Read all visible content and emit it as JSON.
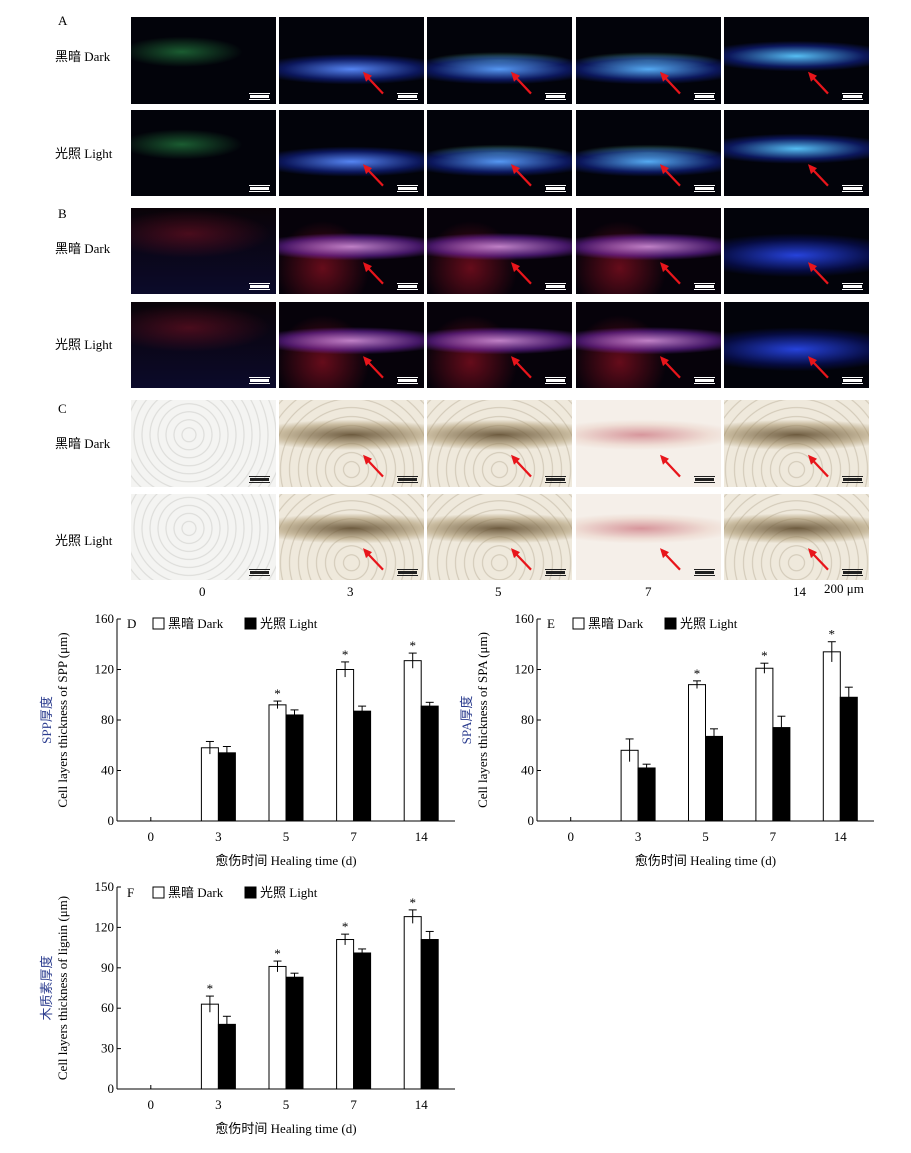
{
  "micrograph_panels": [
    {
      "letter": "A",
      "theme": "blue-green",
      "rows": [
        {
          "label": "黑暗 Dark"
        },
        {
          "label": "光照 Light"
        }
      ]
    },
    {
      "letter": "B",
      "theme": "red-blue",
      "rows": [
        {
          "label": "黑暗 Dark"
        },
        {
          "label": "光照 Light"
        }
      ]
    },
    {
      "letter": "C",
      "theme": "brightfield",
      "rows": [
        {
          "label": "黑暗 Dark"
        },
        {
          "label": "光照 Light"
        }
      ]
    }
  ],
  "time_labels": [
    "0",
    "3",
    "5",
    "7",
    "14"
  ],
  "scale_text": "200 μm",
  "colors": {
    "bar_dark": "#ffffff",
    "bar_light": "#000000",
    "arrow": "#e8151b",
    "label_blue": "#2c3d8f"
  },
  "chart_data": [
    {
      "type": "bar",
      "panel": "D",
      "categories": [
        "0",
        "3",
        "5",
        "7",
        "14"
      ],
      "legend": [
        "黑暗 Dark",
        "光照 Light"
      ],
      "legend_placement": "top-left",
      "xlabel": "愈伤时间 Healing time (d)",
      "ylabel_cn": "SPP厚度",
      "ylabel_en": "Cell layers thickness of SPP (μm)",
      "ylim": [
        0,
        160
      ],
      "yticks": [
        0,
        40,
        80,
        120,
        160
      ],
      "grid": false,
      "series": [
        {
          "name": "黑暗 Dark",
          "values": [
            0,
            58,
            92,
            120,
            127
          ],
          "errors": [
            0,
            5,
            3,
            6,
            6
          ],
          "significant": [
            false,
            false,
            true,
            true,
            true
          ]
        },
        {
          "name": "光照 Light",
          "values": [
            0,
            54,
            84,
            87,
            91
          ],
          "errors": [
            0,
            5,
            4,
            4,
            3
          ]
        }
      ]
    },
    {
      "type": "bar",
      "panel": "E",
      "categories": [
        "0",
        "3",
        "5",
        "7",
        "14"
      ],
      "legend": [
        "黑暗 Dark",
        "光照 Light"
      ],
      "legend_placement": "top-left",
      "xlabel": "愈伤时间 Healing time (d)",
      "ylabel_cn": "SPA厚度",
      "ylabel_en": "Cell layers thickness of SPA (μm)",
      "ylim": [
        0,
        160
      ],
      "yticks": [
        0,
        40,
        80,
        120,
        160
      ],
      "grid": false,
      "series": [
        {
          "name": "黑暗 Dark",
          "values": [
            0,
            56,
            108,
            121,
            134
          ],
          "errors": [
            0,
            9,
            3,
            4,
            8
          ],
          "significant": [
            false,
            false,
            true,
            true,
            true
          ]
        },
        {
          "name": "光照 Light",
          "values": [
            0,
            42,
            67,
            74,
            98
          ],
          "errors": [
            0,
            3,
            6,
            9,
            8
          ]
        }
      ]
    },
    {
      "type": "bar",
      "panel": "F",
      "categories": [
        "0",
        "3",
        "5",
        "7",
        "14"
      ],
      "legend": [
        "黑暗 Dark",
        "光照 Light"
      ],
      "legend_placement": "top-left",
      "xlabel": "愈伤时间 Healing time (d)",
      "ylabel_cn": "木质素厚度",
      "ylabel_en": "Cell layers thickness of lignin (μm)",
      "ylim": [
        0,
        150
      ],
      "yticks": [
        0,
        30,
        60,
        90,
        120,
        150
      ],
      "grid": false,
      "series": [
        {
          "name": "黑暗 Dark",
          "values": [
            0,
            63,
            91,
            111,
            128
          ],
          "errors": [
            0,
            6,
            4,
            4,
            5
          ],
          "significant": [
            false,
            true,
            true,
            true,
            true
          ]
        },
        {
          "name": "光照 Light",
          "values": [
            0,
            48,
            83,
            101,
            111
          ],
          "errors": [
            0,
            6,
            3,
            3,
            6
          ]
        }
      ]
    }
  ]
}
